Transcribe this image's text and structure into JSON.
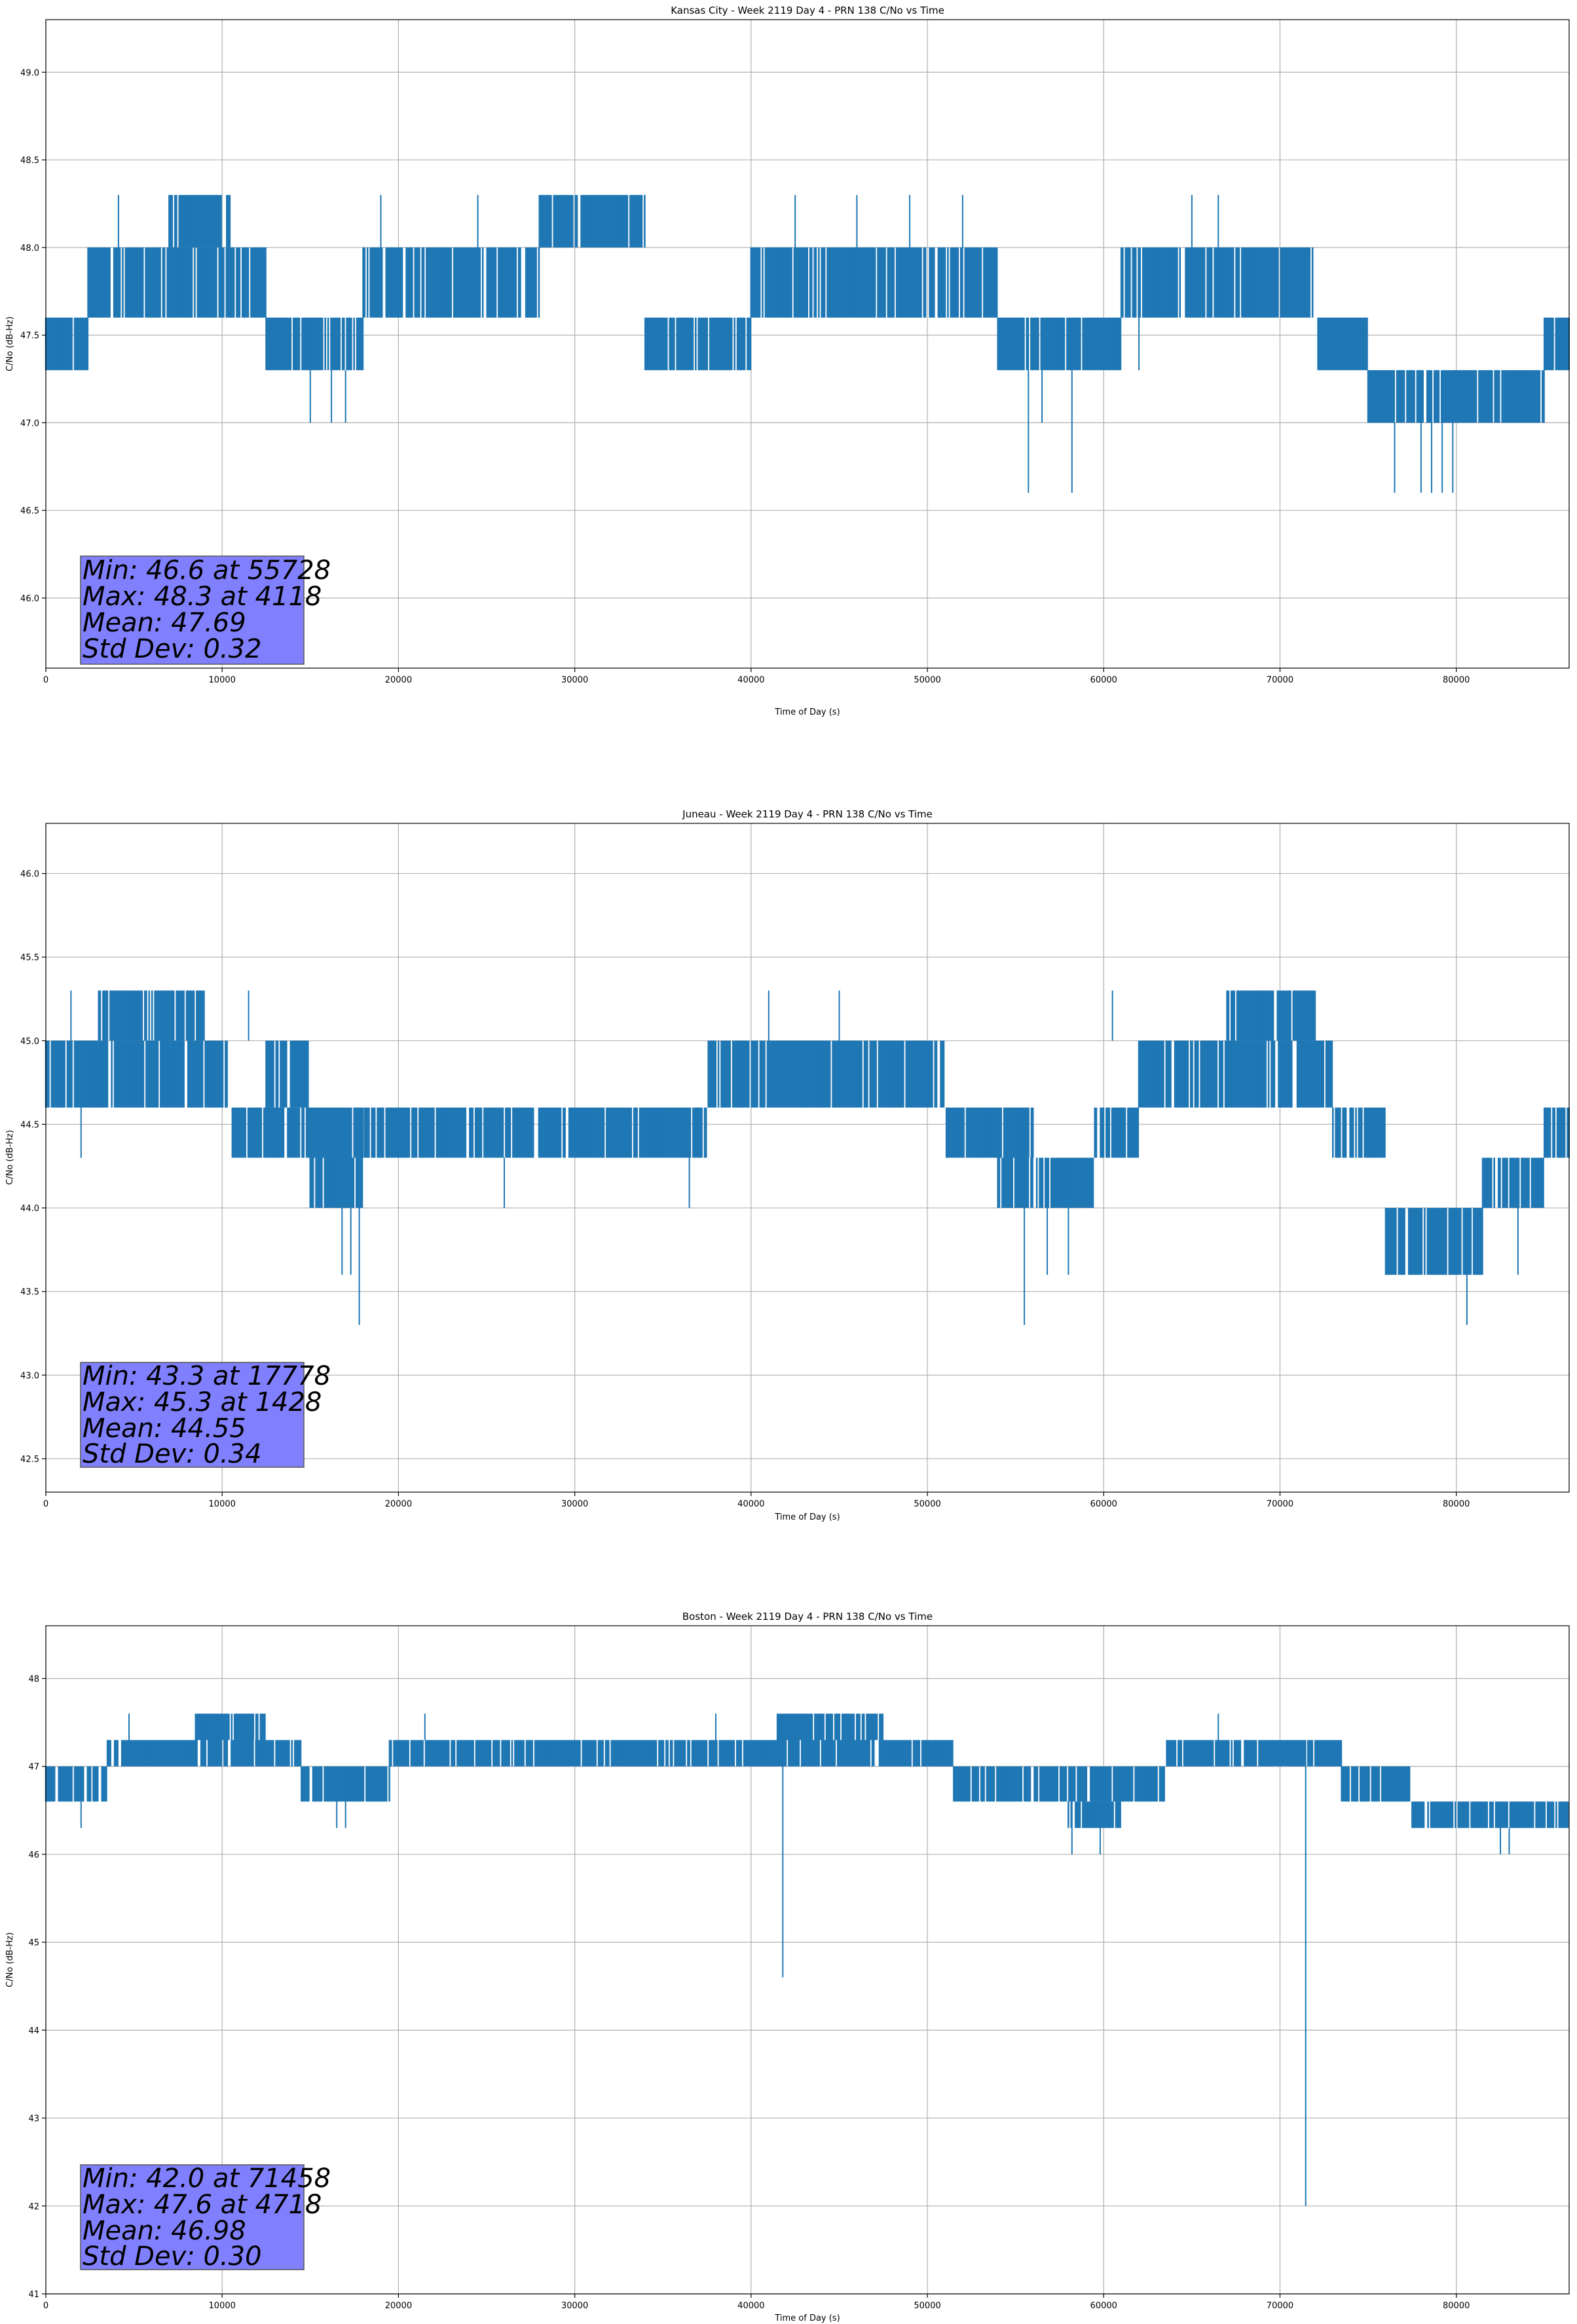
{
  "chart_data": [
    {
      "type": "line",
      "title": "Kansas City - Week 2119 Day 4 - PRN 138 C/No vs Time",
      "xlabel": "Time of Day (s)",
      "ylabel": "C/No (dB-Hz)",
      "xlim": [
        0,
        86400
      ],
      "ylim": [
        45.6,
        49.3
      ],
      "grid": true,
      "xticks": [
        0,
        10000,
        20000,
        30000,
        40000,
        50000,
        60000,
        70000,
        80000
      ],
      "yticks": [
        46.0,
        46.5,
        47.0,
        47.5,
        48.0,
        48.5,
        49.0
      ],
      "xtick_labels": [
        "0",
        "10000",
        "20000",
        "30000",
        "40000",
        "50000",
        "60000",
        "70000",
        "80000"
      ],
      "ytick_labels": [
        "46.0",
        "46.5",
        "47.0",
        "47.5",
        "48.0",
        "48.5",
        "49.0"
      ],
      "series": [
        {
          "name": "C/No",
          "color": "#1f77b4",
          "segments": [
            {
              "x": [
                0,
                2400
              ],
              "low": 47.3,
              "high": 47.6
            },
            {
              "x": [
                2400,
                10500
              ],
              "low": 47.6,
              "high": 48.0
            },
            {
              "x": [
                7000,
                10500
              ],
              "low": 48.0,
              "high": 48.3
            },
            {
              "x": [
                10500,
                12500
              ],
              "low": 47.6,
              "high": 48.0
            },
            {
              "x": [
                12500,
                18000
              ],
              "low": 47.3,
              "high": 47.6
            },
            {
              "x": [
                18000,
                28000
              ],
              "low": 47.6,
              "high": 48.0
            },
            {
              "x": [
                28000,
                34000
              ],
              "low": 48.0,
              "high": 48.3
            },
            {
              "x": [
                34000,
                40000
              ],
              "low": 47.3,
              "high": 47.6
            },
            {
              "x": [
                40000,
                51000
              ],
              "low": 47.6,
              "high": 48.0
            },
            {
              "x": [
                51000,
                54000
              ],
              "low": 47.6,
              "high": 48.0
            },
            {
              "x": [
                54000,
                58500
              ],
              "low": 47.3,
              "high": 47.6
            },
            {
              "x": [
                58500,
                61000
              ],
              "low": 47.3,
              "high": 47.6
            },
            {
              "x": [
                61000,
                64000
              ],
              "low": 47.6,
              "high": 48.0
            },
            {
              "x": [
                64000,
                72000
              ],
              "low": 47.6,
              "high": 48.0
            },
            {
              "x": [
                72000,
                75000
              ],
              "low": 47.3,
              "high": 47.6
            },
            {
              "x": [
                75000,
                85000
              ],
              "low": 47.0,
              "high": 47.3
            },
            {
              "x": [
                85000,
                86400
              ],
              "low": 47.3,
              "high": 47.6
            }
          ],
          "spikes": [
            {
              "x": 55728,
              "low": 46.6,
              "high": 47.3
            },
            {
              "x": 58200,
              "low": 46.6,
              "high": 47.3
            },
            {
              "x": 76500,
              "low": 46.6,
              "high": 47.0
            },
            {
              "x": 78000,
              "low": 46.6,
              "high": 47.0
            },
            {
              "x": 78600,
              "low": 46.6,
              "high": 47.0
            },
            {
              "x": 79200,
              "low": 46.6,
              "high": 47.0
            },
            {
              "x": 79800,
              "low": 46.6,
              "high": 47.0
            },
            {
              "x": 15000,
              "low": 47.0,
              "high": 47.3
            },
            {
              "x": 16200,
              "low": 47.0,
              "high": 47.3
            },
            {
              "x": 17000,
              "low": 47.0,
              "high": 47.3
            },
            {
              "x": 4118,
              "low": 48.0,
              "high": 48.3
            },
            {
              "x": 19000,
              "low": 48.0,
              "high": 48.3
            },
            {
              "x": 24500,
              "low": 48.0,
              "high": 48.3
            },
            {
              "x": 42500,
              "low": 48.0,
              "high": 48.3
            },
            {
              "x": 46000,
              "low": 48.0,
              "high": 48.3
            },
            {
              "x": 52000,
              "low": 48.0,
              "high": 48.3
            },
            {
              "x": 65000,
              "low": 48.0,
              "high": 48.3
            },
            {
              "x": 66500,
              "low": 48.0,
              "high": 48.3
            },
            {
              "x": 49000,
              "low": 48.0,
              "high": 48.3
            },
            {
              "x": 56500,
              "low": 47.0,
              "high": 47.3
            },
            {
              "x": 62000,
              "low": 47.3,
              "high": 47.6
            }
          ]
        }
      ],
      "stats": {
        "min_line": "Min: 46.6 at 55728",
        "max_line": "Max: 48.3 at 4118",
        "mean_line": "Mean: 47.69",
        "std_line": "Std Dev: 0.32"
      },
      "stats_box_color": "#8080ff",
      "stats_box_border": "#555555"
    },
    {
      "type": "line",
      "title": "Juneau - Week 2119 Day 4 - PRN 138 C/No vs Time",
      "xlabel": "Time of Day (s)",
      "ylabel": "C/No (dB-Hz)",
      "xlim": [
        0,
        86400
      ],
      "ylim": [
        42.3,
        46.3
      ],
      "grid": true,
      "xticks": [
        0,
        10000,
        20000,
        30000,
        40000,
        50000,
        60000,
        70000,
        80000
      ],
      "yticks": [
        42.5,
        43.0,
        43.5,
        44.0,
        44.5,
        45.0,
        45.5,
        46.0
      ],
      "xtick_labels": [
        "0",
        "10000",
        "20000",
        "30000",
        "40000",
        "50000",
        "60000",
        "70000",
        "80000"
      ],
      "ytick_labels": [
        "42.5",
        "43.0",
        "43.5",
        "44.0",
        "44.5",
        "45.0",
        "45.5",
        "46.0"
      ],
      "series": [
        {
          "name": "C/No",
          "color": "#1f77b4",
          "segments": [
            {
              "x": [
                0,
                3000
              ],
              "low": 44.6,
              "high": 45.0
            },
            {
              "x": [
                3000,
                10500
              ],
              "low": 44.6,
              "high": 45.0
            },
            {
              "x": [
                3000,
                9000
              ],
              "low": 45.0,
              "high": 45.3
            },
            {
              "x": [
                10500,
                12500
              ],
              "low": 44.3,
              "high": 44.6
            },
            {
              "x": [
                12500,
                15000
              ],
              "low": 44.6,
              "high": 45.0
            },
            {
              "x": [
                12500,
                18000
              ],
              "low": 44.3,
              "high": 44.6
            },
            {
              "x": [
                15000,
                18000
              ],
              "low": 44.0,
              "high": 44.3
            },
            {
              "x": [
                18000,
                37500
              ],
              "low": 44.3,
              "high": 44.6
            },
            {
              "x": [
                37500,
                43000
              ],
              "low": 44.6,
              "high": 45.0
            },
            {
              "x": [
                43000,
                51000
              ],
              "low": 44.6,
              "high": 45.0
            },
            {
              "x": [
                51000,
                56000
              ],
              "low": 44.3,
              "high": 44.6
            },
            {
              "x": [
                54000,
                59500
              ],
              "low": 44.0,
              "high": 44.3
            },
            {
              "x": [
                59500,
                62000
              ],
              "low": 44.3,
              "high": 44.6
            },
            {
              "x": [
                62000,
                73000
              ],
              "low": 44.6,
              "high": 45.0
            },
            {
              "x": [
                67000,
                72000
              ],
              "low": 45.0,
              "high": 45.3
            },
            {
              "x": [
                73000,
                76000
              ],
              "low": 44.3,
              "high": 44.6
            },
            {
              "x": [
                76000,
                81500
              ],
              "low": 43.6,
              "high": 44.0
            },
            {
              "x": [
                81500,
                85000
              ],
              "low": 44.0,
              "high": 44.3
            },
            {
              "x": [
                85000,
                86400
              ],
              "low": 44.3,
              "high": 44.6
            }
          ],
          "spikes": [
            {
              "x": 17778,
              "low": 43.3,
              "high": 44.0
            },
            {
              "x": 16800,
              "low": 43.6,
              "high": 44.0
            },
            {
              "x": 17300,
              "low": 43.6,
              "high": 44.0
            },
            {
              "x": 55500,
              "low": 43.3,
              "high": 44.0
            },
            {
              "x": 56800,
              "low": 43.6,
              "high": 44.0
            },
            {
              "x": 58000,
              "low": 43.6,
              "high": 44.0
            },
            {
              "x": 80600,
              "low": 43.3,
              "high": 43.6
            },
            {
              "x": 83500,
              "low": 43.6,
              "high": 44.0
            },
            {
              "x": 1428,
              "low": 45.0,
              "high": 45.3
            },
            {
              "x": 11500,
              "low": 45.0,
              "high": 45.3
            },
            {
              "x": 41000,
              "low": 45.0,
              "high": 45.3
            },
            {
              "x": 45000,
              "low": 45.0,
              "high": 45.3
            },
            {
              "x": 60500,
              "low": 45.0,
              "high": 45.3
            },
            {
              "x": 2000,
              "low": 44.3,
              "high": 44.6
            },
            {
              "x": 26000,
              "low": 44.0,
              "high": 44.3
            },
            {
              "x": 36500,
              "low": 44.0,
              "high": 44.3
            }
          ]
        }
      ],
      "stats": {
        "min_line": "Min: 43.3 at 17778",
        "max_line": "Max: 45.3 at 1428",
        "mean_line": "Mean: 44.55",
        "std_line": "Std Dev: 0.34"
      },
      "stats_box_color": "#8080ff",
      "stats_box_border": "#555555"
    },
    {
      "type": "line",
      "title": "Boston - Week 2119 Day 4 - PRN 138 C/No vs Time",
      "xlabel": "Time of Day (s)",
      "ylabel": "C/No (dB-Hz)",
      "xlim": [
        0,
        86400
      ],
      "ylim": [
        41.0,
        48.6
      ],
      "grid": true,
      "xticks": [
        0,
        10000,
        20000,
        30000,
        40000,
        50000,
        60000,
        70000,
        80000
      ],
      "yticks": [
        41,
        42,
        43,
        44,
        45,
        46,
        47,
        48
      ],
      "xtick_labels": [
        "0",
        "10000",
        "20000",
        "30000",
        "40000",
        "50000",
        "60000",
        "70000",
        "80000"
      ],
      "ytick_labels": [
        "41",
        "42",
        "43",
        "44",
        "45",
        "46",
        "47",
        "48"
      ],
      "series": [
        {
          "name": "C/No",
          "color": "#1f77b4",
          "segments": [
            {
              "x": [
                0,
                3500
              ],
              "low": 46.6,
              "high": 47.0
            },
            {
              "x": [
                3500,
                14500
              ],
              "low": 47.0,
              "high": 47.3
            },
            {
              "x": [
                8500,
                12500
              ],
              "low": 47.3,
              "high": 47.6
            },
            {
              "x": [
                14500,
                19500
              ],
              "low": 46.6,
              "high": 47.0
            },
            {
              "x": [
                19500,
                47500
              ],
              "low": 47.0,
              "high": 47.3
            },
            {
              "x": [
                41500,
                47500
              ],
              "low": 47.3,
              "high": 47.6
            },
            {
              "x": [
                47500,
                51500
              ],
              "low": 47.0,
              "high": 47.3
            },
            {
              "x": [
                51500,
                63500
              ],
              "low": 46.6,
              "high": 47.0
            },
            {
              "x": [
                58000,
                61000
              ],
              "low": 46.3,
              "high": 46.6
            },
            {
              "x": [
                63500,
                73500
              ],
              "low": 47.0,
              "high": 47.3
            },
            {
              "x": [
                73500,
                77500
              ],
              "low": 46.6,
              "high": 47.0
            },
            {
              "x": [
                77500,
                86400
              ],
              "low": 46.3,
              "high": 46.6
            }
          ],
          "spikes": [
            {
              "x": 71458,
              "low": 42.0,
              "high": 47.3
            },
            {
              "x": 41800,
              "low": 44.6,
              "high": 47.3
            },
            {
              "x": 58200,
              "low": 46.0,
              "high": 46.6
            },
            {
              "x": 59800,
              "low": 46.0,
              "high": 46.6
            },
            {
              "x": 82500,
              "low": 46.0,
              "high": 46.3
            },
            {
              "x": 83000,
              "low": 46.0,
              "high": 46.3
            },
            {
              "x": 4718,
              "low": 47.3,
              "high": 47.6
            },
            {
              "x": 21500,
              "low": 47.3,
              "high": 47.6
            },
            {
              "x": 38000,
              "low": 47.3,
              "high": 47.6
            },
            {
              "x": 66500,
              "low": 47.3,
              "high": 47.6
            },
            {
              "x": 16500,
              "low": 46.3,
              "high": 46.6
            },
            {
              "x": 17000,
              "low": 46.3,
              "high": 46.6
            },
            {
              "x": 2000,
              "low": 46.3,
              "high": 46.6
            }
          ]
        }
      ],
      "stats": {
        "min_line": "Min: 42.0 at 71458",
        "max_line": "Max: 47.6 at 4718",
        "mean_line": "Mean: 46.98",
        "std_line": "Std Dev: 0.30"
      },
      "stats_box_color": "#8080ff",
      "stats_box_border": "#555555"
    }
  ]
}
